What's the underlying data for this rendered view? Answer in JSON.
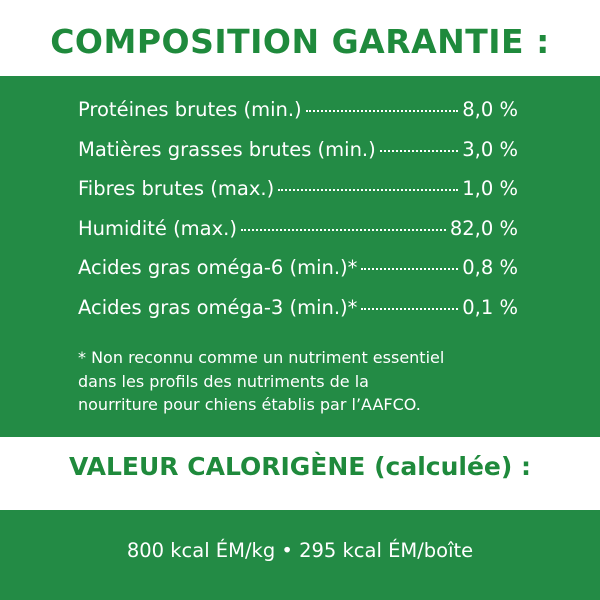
{
  "header": {
    "title": "COMPOSITION GARANTIE :"
  },
  "table": {
    "rows": [
      [
        "Protéines brutes (min.)",
        "8,0 %"
      ],
      [
        "Matières grasses brutes (min.)",
        "3,0 %"
      ],
      [
        "Fibres brutes (max.)",
        "1,0 %"
      ],
      [
        "Humidité (max.)",
        "82,0 %"
      ],
      [
        "Acides gras oméga-6 (min.)*",
        "0,8 %"
      ],
      [
        "Acides gras oméga-3 (min.)*",
        "0,1 %"
      ]
    ]
  },
  "footnote": [
    "* Non reconnu comme un nutriment essentiel",
    "dans les profils des nutriments de la",
    "nourriture pour chiens établis par l’AAFCO."
  ],
  "calorie": {
    "title": "VALEUR CALORIGÈNE (calculée) :",
    "text": "800 kcal ÉM/kg • 295 kcal ÉM/boîte"
  }
}
